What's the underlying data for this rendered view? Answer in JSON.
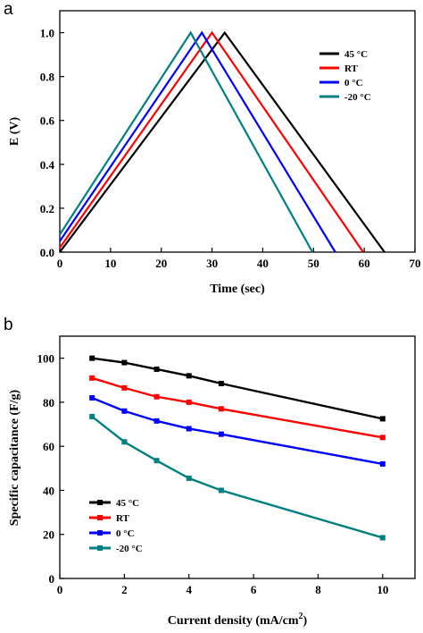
{
  "chart_data": [
    {
      "panel": "a",
      "type": "line",
      "xlabel": "Time (sec)",
      "ylabel": "E (V)",
      "xlim": [
        0,
        70
      ],
      "ylim": [
        0,
        1.1
      ],
      "xticks": [
        "0",
        "10",
        "20",
        "30",
        "40",
        "50",
        "60",
        "70"
      ],
      "yticks": [
        "0.0",
        "0.2",
        "0.4",
        "0.6",
        "0.8",
        "1.0"
      ],
      "legend": "top-right",
      "series": [
        {
          "name": "45 °C",
          "color": "#000000",
          "points": [
            [
              0,
              0.0
            ],
            [
              32.5,
              1.0
            ],
            [
              64.0,
              0.0
            ]
          ]
        },
        {
          "name": "RT",
          "color": "#ff0000",
          "points": [
            [
              0,
              0.02
            ],
            [
              30.0,
              1.0
            ],
            [
              59.8,
              0.0
            ]
          ]
        },
        {
          "name": "0 °C",
          "color": "#0000ff",
          "points": [
            [
              0,
              0.05
            ],
            [
              28.0,
              1.0
            ],
            [
              54.3,
              0.0
            ]
          ]
        },
        {
          "name": "-20 °C",
          "color": "#008080",
          "points": [
            [
              0,
              0.08
            ],
            [
              25.8,
              1.0
            ],
            [
              49.8,
              0.0
            ]
          ]
        }
      ]
    },
    {
      "panel": "b",
      "type": "line",
      "xlabel": "Current density (mA/cm",
      "xlabel_sup": "2",
      "xlabel_end": ")",
      "ylabel": "Specific capacitance (F/g)",
      "xlim": [
        0,
        11
      ],
      "ylim": [
        0,
        110
      ],
      "xticks": [
        "0",
        "2",
        "4",
        "6",
        "8",
        "10"
      ],
      "yticks": [
        "0",
        "20",
        "40",
        "60",
        "80",
        "100"
      ],
      "legend": "bottom-left",
      "x": [
        1,
        2,
        3,
        4,
        5,
        10
      ],
      "series": [
        {
          "name": "45 °C",
          "color": "#000000",
          "values": [
            100,
            98,
            95,
            92,
            88.5,
            72.5
          ]
        },
        {
          "name": "RT",
          "color": "#ff0000",
          "values": [
            91,
            86.5,
            82.5,
            80,
            77,
            64
          ]
        },
        {
          "name": "0 °C",
          "color": "#0000ff",
          "values": [
            82,
            76,
            71.5,
            68,
            65.5,
            52
          ]
        },
        {
          "name": "-20 °C",
          "color": "#008080",
          "values": [
            73.5,
            62,
            53.5,
            45.5,
            40,
            18.5
          ]
        }
      ]
    }
  ]
}
